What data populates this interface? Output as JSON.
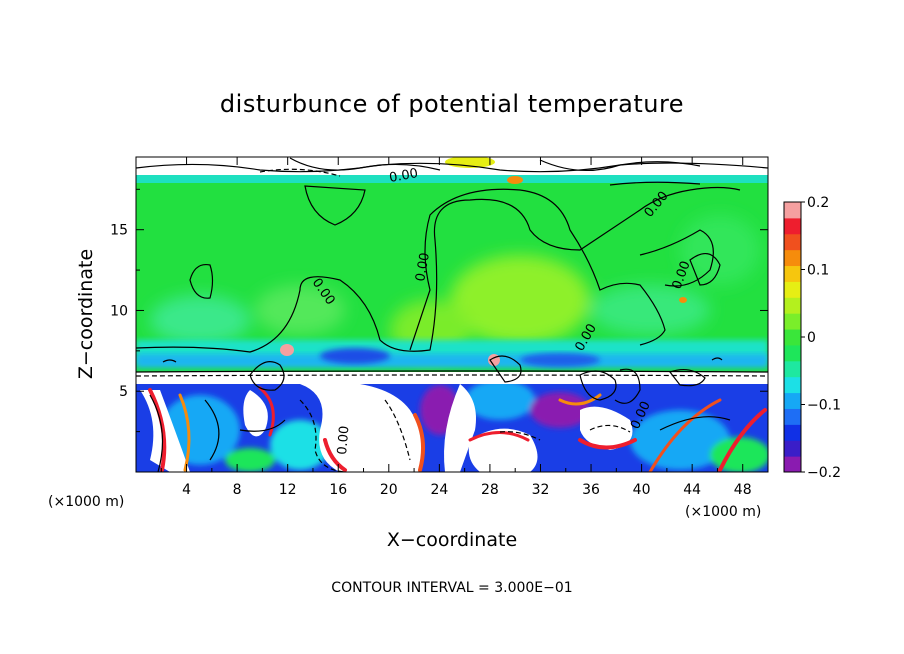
{
  "chart_data": {
    "type": "heatmap",
    "title": "disturbunce of potential temperature",
    "xlabel": "X−coordinate",
    "ylabel": "Z−coordinate",
    "x_unit_label": "(×1000 m)",
    "y_unit_label": "(×1000 m)",
    "xlim": [
      0,
      50
    ],
    "ylim": [
      0,
      19.5
    ],
    "x_ticks": [
      4,
      8,
      12,
      16,
      20,
      24,
      28,
      32,
      36,
      40,
      44,
      48
    ],
    "x_tick_labels": [
      "4",
      "8",
      "12",
      "16",
      "20",
      "24",
      "28",
      "32",
      "36",
      "40",
      "44",
      "48"
    ],
    "y_ticks": [
      5,
      10,
      15
    ],
    "y_tick_labels": [
      "5",
      "10",
      "15"
    ],
    "colorbar": {
      "min": -0.2,
      "max": 0.2,
      "tick_values": [
        0.2,
        0.1,
        0,
        -0.1,
        -0.2
      ],
      "tick_labels": [
        "0.2",
        "0.1",
        "0",
        "−0.1",
        "−0.2"
      ],
      "colors": [
        "#8a1bb0",
        "#3a1ec8",
        "#1030e6",
        "#1e6ef5",
        "#16a8f5",
        "#1ce0e6",
        "#1ee8a0",
        "#1ee65a",
        "#3ae63a",
        "#7aee2a",
        "#b4f01e",
        "#e6ee14",
        "#f6c60e",
        "#f68c0c",
        "#f0501e",
        "#ee1e2e",
        "#f5a0a0"
      ]
    },
    "contour_labels": [
      "0.00",
      "0.00",
      "0.00",
      "0.00",
      "0.00",
      "0.00",
      "0.00",
      "0.00"
    ],
    "footer": "CONTOUR INTERVAL = 3.000E−01"
  }
}
